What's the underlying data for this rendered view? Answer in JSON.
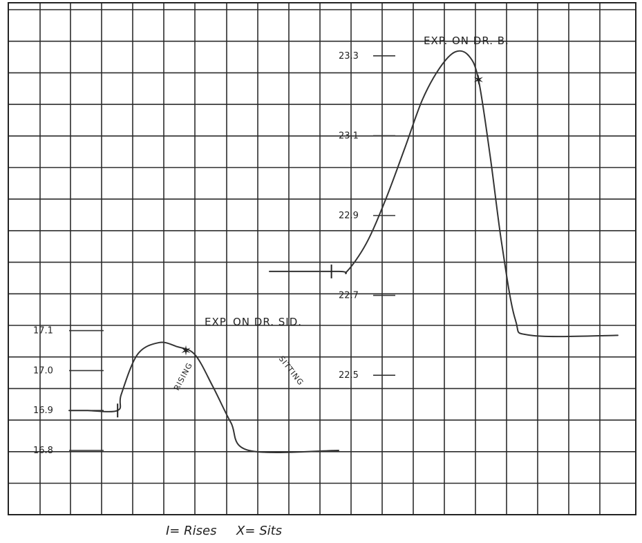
{
  "chart_data": [
    {
      "type": "line",
      "title": "EXP. ON DR. SID.",
      "xlabel": "",
      "ylabel": "",
      "grid": true,
      "yticks": [
        "17.1",
        "17.0",
        "16.9",
        "16.8"
      ],
      "tick_values": [
        17.1,
        17.0,
        16.9,
        16.8
      ],
      "ylim": [
        16.8,
        17.1
      ],
      "x": [
        0,
        1.0,
        2.7,
        2.9,
        3.8,
        5.0,
        6.0,
        7.0,
        8.0,
        9.0,
        10.0,
        15.0
      ],
      "values": [
        16.9,
        16.9,
        16.9,
        16.94,
        17.04,
        17.07,
        17.06,
        17.04,
        16.96,
        16.87,
        16.8,
        16.8
      ],
      "rise_marker": {
        "x": 2.7,
        "y": 16.9
      },
      "sit_marker": {
        "x": 6.5,
        "y": 17.05
      },
      "annotations": [
        "RISING",
        "SITTING"
      ]
    },
    {
      "type": "line",
      "title": "EXP. ON DR. B.",
      "xlabel": "",
      "ylabel": "",
      "grid": true,
      "yticks": [
        "23.3",
        "23.1",
        "22.9",
        "22.7",
        "22.5"
      ],
      "tick_values": [
        23.3,
        23.1,
        22.9,
        22.7,
        22.5
      ],
      "ylim": [
        22.5,
        23.3
      ],
      "x": [
        0,
        3.6,
        4.0,
        5.0,
        6.0,
        7.0,
        7.9,
        8.8,
        9.6,
        10.3,
        10.8,
        11.4,
        12.0,
        12.7,
        13.5,
        18.0
      ],
      "values": [
        22.76,
        22.76,
        22.76,
        22.83,
        22.94,
        23.07,
        23.19,
        23.27,
        23.31,
        23.3,
        23.24,
        23.05,
        22.83,
        22.64,
        22.6,
        22.6
      ],
      "rise_marker": {
        "x": 3.2,
        "y": 22.76
      },
      "sit_marker": {
        "x": 10.8,
        "y": 23.24
      }
    }
  ],
  "legend": {
    "text": "I= Rises     X= Sits"
  }
}
